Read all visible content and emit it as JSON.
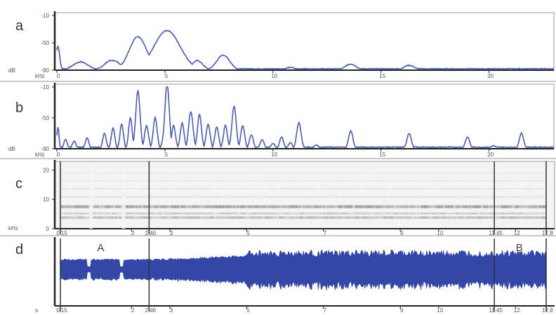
{
  "colors": {
    "trace": "#4a5cae",
    "waveform": "#3547a6",
    "axis": "#222222",
    "frame": "#9a9a9a",
    "divider": "#c8c8c8"
  },
  "panels": {
    "a": "a",
    "b": "b",
    "c": "c",
    "d": "d"
  },
  "chart_data": [
    {
      "panel": "a",
      "type": "line",
      "xlim": [
        0,
        23
      ],
      "ylim": [
        -90,
        -10
      ],
      "y_ticks": [
        -10,
        -50,
        -90
      ],
      "y_tick_labels": [
        "-10",
        "-50",
        "-90"
      ],
      "x_ticks": [
        0,
        5,
        10,
        15,
        20
      ],
      "x_tick_labels": [
        "0",
        "5",
        "10",
        "15",
        "20"
      ],
      "corner_labels": [
        "dB",
        "kHz"
      ],
      "series": [
        {
          "peaks": [
            [
              0.05,
              -55,
              0.08
            ],
            [
              1.1,
              -78,
              0.35
            ],
            [
              2.5,
              -76,
              0.3
            ],
            [
              2.6,
              -76,
              0.35
            ],
            [
              3.75,
              -41,
              0.4
            ],
            [
              5.1,
              -32,
              0.6
            ],
            [
              5.9,
              -76,
              0.3
            ],
            [
              6.5,
              -76,
              0.25
            ],
            [
              7.7,
              -68,
              0.3
            ],
            [
              10.8,
              -86,
              0.2
            ],
            [
              13.6,
              -81,
              0.25
            ],
            [
              16.3,
              -83,
              0.25
            ]
          ]
        }
      ]
    },
    {
      "panel": "b",
      "type": "line",
      "xlim": [
        0,
        23
      ],
      "ylim": [
        -90,
        -10
      ],
      "y_ticks": [
        -10,
        -50,
        -90
      ],
      "y_tick_labels": [
        "-10",
        "-50",
        "-90"
      ],
      "x_ticks": [
        0,
        5,
        10,
        15,
        20
      ],
      "x_tick_labels": [
        "0",
        "5",
        "10",
        "15",
        "20"
      ],
      "corner_labels": [
        "dB",
        "kHz"
      ],
      "series": [
        {
          "peaks": [
            [
              0.05,
              -62,
              0.05
            ],
            [
              0.4,
              -78,
              0.08
            ],
            [
              0.8,
              -80,
              0.08
            ],
            [
              1.4,
              -76,
              0.08
            ],
            [
              2.2,
              -70,
              0.08
            ],
            [
              2.6,
              -63,
              0.08
            ],
            [
              3.0,
              -58,
              0.08
            ],
            [
              3.4,
              -50,
              0.08
            ],
            [
              3.75,
              -15,
              0.1
            ],
            [
              4.15,
              -60,
              0.09
            ],
            [
              4.55,
              -50,
              0.09
            ],
            [
              5.0,
              -62,
              0.09
            ],
            [
              5.4,
              -60,
              0.09
            ],
            [
              5.8,
              -57,
              0.09
            ],
            [
              6.2,
              -42,
              0.1
            ],
            [
              6.6,
              -45,
              0.09
            ],
            [
              5.1,
              -5,
              0.1
            ],
            [
              7.0,
              -58,
              0.09
            ],
            [
              7.4,
              -62,
              0.09
            ],
            [
              7.8,
              -60,
              0.09
            ],
            [
              8.2,
              -35,
              0.1
            ],
            [
              8.6,
              -60,
              0.09
            ],
            [
              9.0,
              -72,
              0.09
            ],
            [
              9.5,
              -78,
              0.09
            ],
            [
              10.0,
              -83,
              0.09
            ],
            [
              10.4,
              -75,
              0.09
            ],
            [
              10.8,
              -82,
              0.09
            ],
            [
              11.2,
              -56,
              0.1
            ],
            [
              12.0,
              -85,
              0.1
            ],
            [
              12.5,
              -88,
              0.1
            ],
            [
              13.6,
              -67,
              0.1
            ],
            [
              16.3,
              -70,
              0.1
            ],
            [
              19.0,
              -75,
              0.1
            ],
            [
              20.2,
              -86,
              0.1
            ],
            [
              21.5,
              -70,
              0.1
            ]
          ]
        }
      ]
    },
    {
      "panel": "c",
      "type": "heatmap",
      "ylim": [
        0,
        22
      ],
      "y_ticks": [
        0,
        10,
        20
      ],
      "y_tick_labels": [
        "0",
        "10",
        "20"
      ],
      "x_ticks": [
        0.15,
        2,
        2.46,
        3,
        5,
        7,
        9,
        10,
        11.45,
        12,
        12.8
      ],
      "x_tick_labels": [
        "0.15",
        "2",
        "2.46",
        "3",
        "5",
        "7",
        "9",
        "10",
        "11.45",
        "12",
        "12.8"
      ],
      "corner_label": "kHz",
      "markers": [
        0.15,
        2.46,
        11.45,
        12.8
      ]
    },
    {
      "panel": "d",
      "type": "waveform",
      "x_ticks": [
        0.15,
        2,
        2.46,
        3,
        5,
        7,
        9,
        10,
        11.45,
        12,
        12.8
      ],
      "x_tick_labels": [
        "0.15",
        "2",
        "2.46",
        "3",
        "5",
        "7",
        "9",
        "10",
        "11.45",
        "12",
        "12.8"
      ],
      "corner_label": "s",
      "markers": [
        0.15,
        2.46,
        11.45,
        12.8
      ],
      "annotations": [
        {
          "label": "A",
          "t": 1.2
        },
        {
          "label": "B",
          "t": 12.1
        }
      ]
    }
  ]
}
